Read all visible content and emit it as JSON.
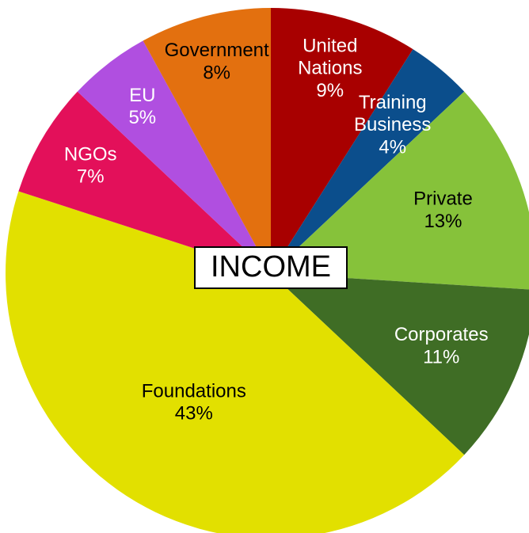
{
  "chart_data": {
    "type": "pie",
    "title": "INCOME",
    "categories": [
      "United Nations",
      "Training Business",
      "Private",
      "Corporates",
      "Foundations",
      "NGOs",
      "EU",
      "Government"
    ],
    "values": [
      9,
      4,
      13,
      11,
      43,
      7,
      5,
      8
    ],
    "value_labels": [
      "9%",
      "4%",
      "13%",
      "11%",
      "43%",
      "7%",
      "5%",
      "8%"
    ],
    "colors": [
      "#a80000",
      "#0b4e8c",
      "#86c23a",
      "#3f6d25",
      "#e2e000",
      "#e3105a",
      "#b04fe0",
      "#e3700f"
    ]
  }
}
